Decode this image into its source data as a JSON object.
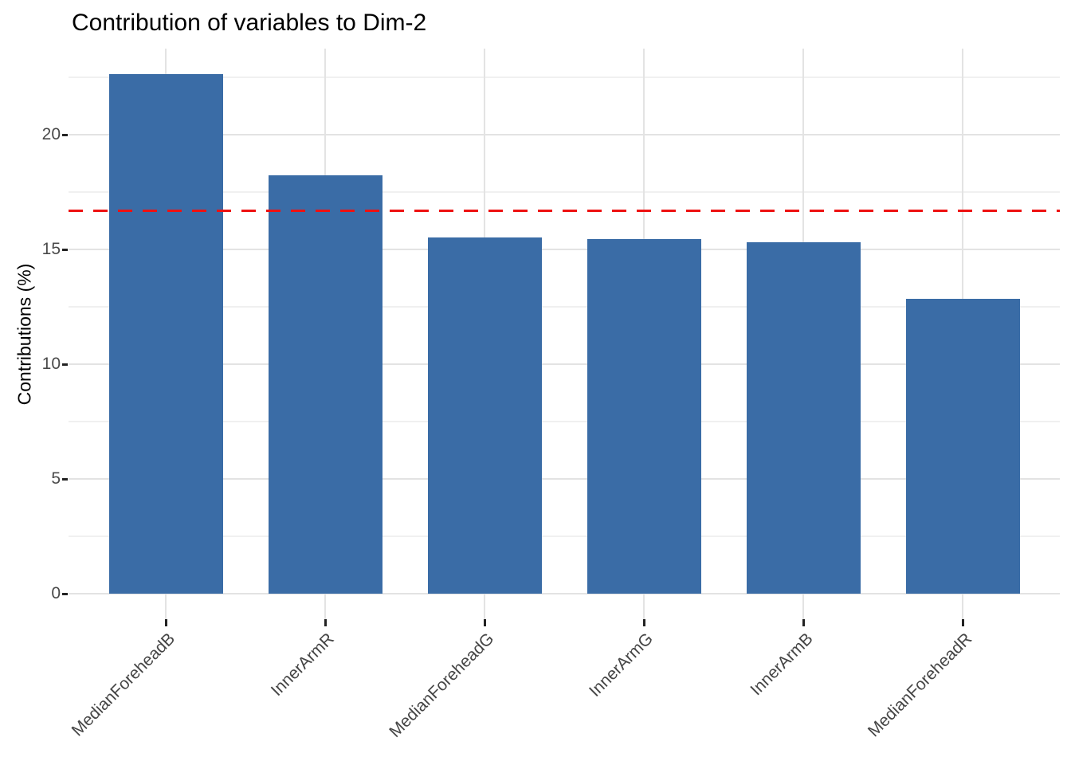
{
  "chart_data": {
    "type": "bar",
    "title": "Contribution of variables to Dim-2",
    "xlabel": "",
    "ylabel": "Contributions (%)",
    "categories": [
      "MedianForeheadB",
      "InnerArmR",
      "MedianForeheadG",
      "InnerArmG",
      "InnerArmB",
      "MedianForeheadR"
    ],
    "values": [
      22.64,
      18.23,
      15.52,
      15.45,
      15.31,
      12.85
    ],
    "y_ticks": [
      0,
      5,
      10,
      15,
      20
    ],
    "y_minor_ticks": [
      2.5,
      7.5,
      12.5,
      17.5,
      22.5
    ],
    "ylim": [
      -1.11,
      23.75
    ],
    "reference_line": {
      "value": 16.67,
      "style": "dashed"
    },
    "grid": true,
    "legend_position": "none",
    "x_label_rotation": -45
  },
  "colors": {
    "bar": "#3a6ca6",
    "reference_line": "#ee1111",
    "grid_major": "#e3e3e3",
    "grid_minor": "#f0f0f0",
    "axis_text": "#4a4a4a",
    "tick_mark": "#222222",
    "title_text": "#000000"
  }
}
